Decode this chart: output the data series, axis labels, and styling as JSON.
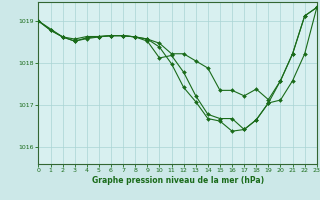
{
  "title": "Graphe pression niveau de la mer (hPa)",
  "background_color": "#cce8e8",
  "plot_bg_color": "#d8f0f0",
  "grid_color": "#aad4d4",
  "line_color": "#1a6b1a",
  "marker_color": "#1a6b1a",
  "spine_color": "#336633",
  "xlim": [
    0,
    23
  ],
  "ylim": [
    1015.6,
    1019.45
  ],
  "yticks": [
    1016,
    1017,
    1018,
    1019
  ],
  "xticks": [
    0,
    1,
    2,
    3,
    4,
    5,
    6,
    7,
    8,
    9,
    10,
    11,
    12,
    13,
    14,
    15,
    16,
    17,
    18,
    19,
    20,
    21,
    22,
    23
  ],
  "series1": {
    "x": [
      0,
      1,
      2,
      3,
      4,
      5,
      6,
      7,
      8,
      9,
      10,
      11,
      12,
      13,
      14,
      15,
      16,
      17,
      18,
      19,
      20,
      21,
      22,
      23
    ],
    "y": [
      1019.0,
      1018.78,
      1018.62,
      1018.57,
      1018.63,
      1018.63,
      1018.65,
      1018.65,
      1018.62,
      1018.57,
      1018.47,
      1018.22,
      1018.22,
      1018.05,
      1017.88,
      1017.35,
      1017.35,
      1017.22,
      1017.38,
      1017.13,
      1017.58,
      1018.22,
      1019.12,
      1019.32
    ]
  },
  "series2": {
    "x": [
      0,
      1,
      2,
      3,
      4,
      5,
      6,
      7,
      8,
      9,
      10,
      11,
      12,
      13,
      14,
      15,
      16,
      17,
      18,
      19,
      20,
      21,
      22,
      23
    ],
    "y": [
      1019.0,
      1018.78,
      1018.62,
      1018.52,
      1018.6,
      1018.63,
      1018.65,
      1018.65,
      1018.62,
      1018.57,
      1018.38,
      1017.98,
      1017.42,
      1017.08,
      1016.68,
      1016.62,
      1016.38,
      1016.42,
      1016.65,
      1017.05,
      1017.58,
      1018.22,
      1019.12,
      1019.32
    ]
  },
  "series3": {
    "x": [
      0,
      2,
      3,
      4,
      5,
      6,
      7,
      8,
      9,
      10,
      11,
      12,
      13,
      14,
      15,
      16,
      17,
      18,
      19,
      20,
      21,
      22,
      23
    ],
    "y": [
      1019.0,
      1018.62,
      1018.52,
      1018.58,
      1018.62,
      1018.65,
      1018.65,
      1018.62,
      1018.52,
      1018.12,
      1018.18,
      1017.78,
      1017.22,
      1016.78,
      1016.68,
      1016.68,
      1016.42,
      1016.65,
      1017.05,
      1017.12,
      1017.58,
      1018.22,
      1019.32
    ]
  }
}
